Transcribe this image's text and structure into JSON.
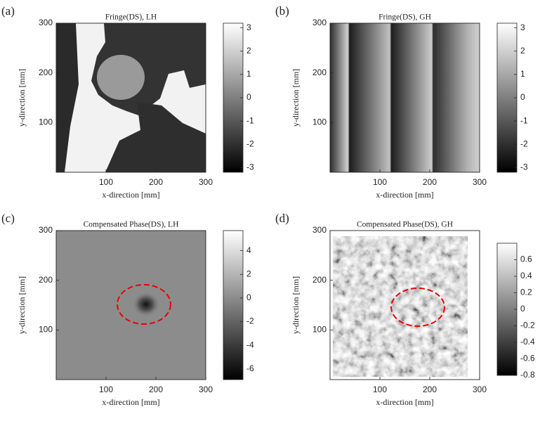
{
  "chart_data": [
    {
      "type": "heatmap",
      "panel_label": "(a)",
      "title": "Fringe(DS), LH",
      "xlabel": "x-direction [mm]",
      "ylabel": "y-direction [mm]",
      "xlim": [
        0,
        300
      ],
      "ylim": [
        0,
        300
      ],
      "xticks": [
        100,
        200,
        300
      ],
      "yticks": [
        100,
        200,
        300
      ],
      "colormap": "gray",
      "clim": [
        -3.2,
        3.2
      ],
      "cticks": [
        3,
        2,
        1,
        0,
        -1,
        -2,
        -3
      ]
    },
    {
      "type": "heatmap",
      "panel_label": "(b)",
      "title": "Fringe(DS), GH",
      "xlabel": "x-direction [mm]",
      "ylabel": "y-direction [mm]",
      "xlim": [
        0,
        300
      ],
      "ylim": [
        0,
        300
      ],
      "xticks": [
        100,
        200,
        300
      ],
      "yticks": [
        100,
        200,
        300
      ],
      "colormap": "gray",
      "clim": [
        -3.2,
        3.2
      ],
      "cticks": [
        3,
        2,
        1,
        0,
        -1,
        -2,
        -3
      ]
    },
    {
      "type": "heatmap",
      "panel_label": "(c)",
      "title": "Compensated Phase(DS), LH",
      "xlabel": "x-direction [mm]",
      "ylabel": "y-direction [mm]",
      "xlim": [
        0,
        300
      ],
      "ylim": [
        0,
        300
      ],
      "xticks": [
        100,
        200,
        300
      ],
      "yticks": [
        100,
        200,
        300
      ],
      "colormap": "gray",
      "clim": [
        -6.9,
        5.7
      ],
      "cticks": [
        4,
        2,
        0,
        -2,
        -4,
        -6
      ]
    },
    {
      "type": "heatmap",
      "panel_label": "(d)",
      "title": "Compensated Phase(DS), GH",
      "xlabel": "x-direction [mm]",
      "ylabel": "y-direction [mm]",
      "xlim": [
        0,
        300
      ],
      "ylim": [
        0,
        300
      ],
      "xticks": [
        100,
        200,
        300
      ],
      "yticks": [
        100,
        200,
        300
      ],
      "colormap": "gray",
      "clim": [
        -0.8,
        0.8
      ],
      "cticks": [
        0.6,
        0.4,
        0.2,
        0,
        -0.2,
        -0.4,
        -0.6,
        -0.8
      ]
    }
  ]
}
